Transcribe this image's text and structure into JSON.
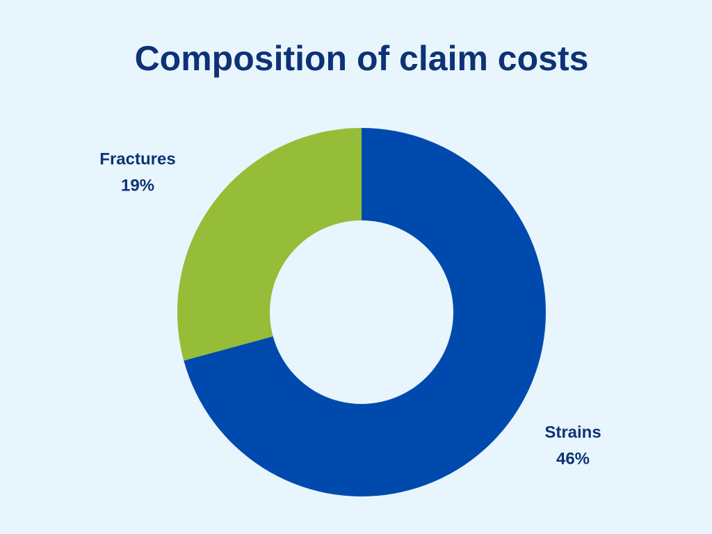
{
  "chart_data": {
    "type": "donut",
    "title": "Composition of claim costs",
    "categories": [
      "Strains",
      "Fractures"
    ],
    "values": [
      46,
      19
    ],
    "value_labels": [
      "46%",
      "19%"
    ],
    "colors": [
      "#004aad",
      "#95bd37"
    ]
  }
}
